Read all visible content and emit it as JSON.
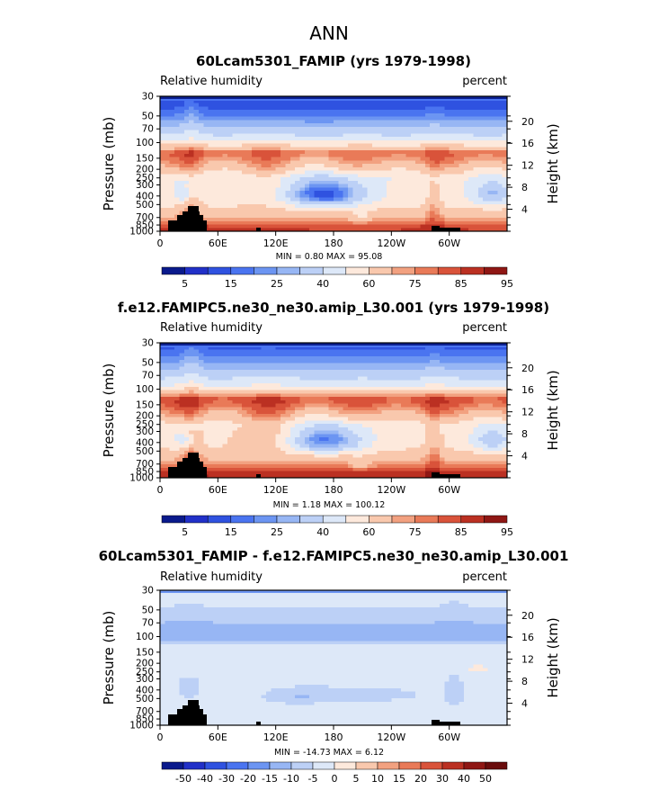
{
  "title": "ANN",
  "palettes": {
    "full": [
      "#0a1a8c",
      "#2130c8",
      "#2f52e0",
      "#4a74f0",
      "#6c95f2",
      "#97b6f4",
      "#bcd0f6",
      "#dde8f8",
      "#fde9dc",
      "#f9c8ad",
      "#f2a180",
      "#e97a58",
      "#d9533a",
      "#bb3022",
      "#8f1714"
    ],
    "diff": [
      "#0a1a8c",
      "#2130c8",
      "#2f52e0",
      "#4a74f0",
      "#6c95f2",
      "#97b6f4",
      "#bcd0f6",
      "#dde8f8",
      "#fde9dc",
      "#f9c8ad",
      "#f2a180",
      "#e97a58",
      "#d9533a",
      "#bb3022",
      "#8f1714",
      "#6a0c0c"
    ]
  },
  "colors": {
    "land": "#000000",
    "stratosphere": "#0b1f8f"
  },
  "chart_data": [
    {
      "type": "heatmap",
      "variant": "model1",
      "title": "60Lcam5301_FAMIP (yrs 1979-1998)",
      "left_label": "Relative humidity",
      "right_label": "percent",
      "ylabel": "Pressure (mb)",
      "y2label": "Height (km)",
      "xticks": [
        "0",
        "60E",
        "120E",
        "180",
        "120W",
        "60W"
      ],
      "xtick_lon": [
        0,
        60,
        120,
        180,
        240,
        300
      ],
      "xlim": [
        0,
        360
      ],
      "pressure_ticks": [
        "30",
        "50",
        "70",
        "100",
        "150",
        "200",
        "250",
        "300",
        "400",
        "500",
        "700",
        "850",
        "1000"
      ],
      "pressure_values": [
        30,
        50,
        70,
        100,
        150,
        200,
        250,
        300,
        400,
        500,
        700,
        850,
        1000
      ],
      "ylim": [
        1000,
        30
      ],
      "height_ticks": [
        "20",
        "16",
        "12",
        "8",
        "4"
      ],
      "height_values": [
        20,
        16,
        12,
        8,
        4
      ],
      "stats": "MIN =    0.80   MAX =   95.08",
      "min": 0.8,
      "max": 95.08,
      "levels": [
        0,
        5,
        10,
        15,
        20,
        25,
        30,
        40,
        50,
        60,
        70,
        75,
        80,
        85,
        90,
        95
      ],
      "colorbar_labels": [
        "5",
        "15",
        "25",
        "40",
        "60",
        "75",
        "85",
        "95"
      ],
      "colorbar_label_index": [
        1,
        3,
        5,
        7,
        9,
        11,
        13,
        15
      ]
    },
    {
      "type": "heatmap",
      "variant": "model2",
      "title": "f.e12.FAMIPC5.ne30_ne30.amip_L30.001 (yrs 1979-1998)",
      "left_label": "Relative humidity",
      "right_label": "percent",
      "ylabel": "Pressure (mb)",
      "y2label": "Height (km)",
      "xticks": [
        "0",
        "60E",
        "120E",
        "180",
        "120W",
        "60W"
      ],
      "xtick_lon": [
        0,
        60,
        120,
        180,
        240,
        300
      ],
      "xlim": [
        0,
        360
      ],
      "pressure_ticks": [
        "30",
        "50",
        "70",
        "100",
        "150",
        "200",
        "250",
        "300",
        "400",
        "500",
        "700",
        "850",
        "1000"
      ],
      "pressure_values": [
        30,
        50,
        70,
        100,
        150,
        200,
        250,
        300,
        400,
        500,
        700,
        850,
        1000
      ],
      "ylim": [
        1000,
        30
      ],
      "height_ticks": [
        "20",
        "16",
        "12",
        "8",
        "4"
      ],
      "height_values": [
        20,
        16,
        12,
        8,
        4
      ],
      "stats": "MIN =    1.18   MAX =  100.12",
      "min": 1.18,
      "max": 100.12,
      "levels": [
        0,
        5,
        10,
        15,
        20,
        25,
        30,
        40,
        50,
        60,
        70,
        75,
        80,
        85,
        90,
        95
      ],
      "colorbar_labels": [
        "5",
        "15",
        "25",
        "40",
        "60",
        "75",
        "85",
        "95"
      ],
      "colorbar_label_index": [
        1,
        3,
        5,
        7,
        9,
        11,
        13,
        15
      ]
    },
    {
      "type": "heatmap",
      "variant": "diff",
      "title": "60Lcam5301_FAMIP - f.e12.FAMIPC5.ne30_ne30.amip_L30.001",
      "left_label": "Relative humidity",
      "right_label": "percent",
      "ylabel": "Pressure (mb)",
      "y2label": "Height (km)",
      "xticks": [
        "0",
        "60E",
        "120E",
        "180",
        "120W",
        "60W"
      ],
      "xtick_lon": [
        0,
        60,
        120,
        180,
        240,
        300
      ],
      "xlim": [
        0,
        360
      ],
      "pressure_ticks": [
        "30",
        "50",
        "70",
        "100",
        "150",
        "200",
        "250",
        "300",
        "400",
        "500",
        "700",
        "850",
        "1000"
      ],
      "pressure_values": [
        30,
        50,
        70,
        100,
        150,
        200,
        250,
        300,
        400,
        500,
        700,
        850,
        1000
      ],
      "ylim": [
        1000,
        30
      ],
      "height_ticks": [
        "20",
        "16",
        "12",
        "8",
        "4"
      ],
      "height_values": [
        20,
        16,
        12,
        8,
        4
      ],
      "stats": "MIN =  -14.73   MAX =    6.12",
      "min": -14.73,
      "max": 6.12,
      "levels": [
        -60,
        -50,
        -40,
        -30,
        -20,
        -15,
        -10,
        -5,
        0,
        5,
        10,
        15,
        20,
        30,
        40,
        50,
        60
      ],
      "colorbar_labels": [
        "-50",
        "-40",
        "-30",
        "-20",
        "-15",
        "-10",
        "-5",
        "0",
        "5",
        "10",
        "15",
        "20",
        "30",
        "40",
        "50"
      ],
      "colorbar_label_index": [
        1,
        2,
        3,
        4,
        5,
        6,
        7,
        8,
        9,
        10,
        11,
        12,
        13,
        14,
        15
      ]
    }
  ]
}
